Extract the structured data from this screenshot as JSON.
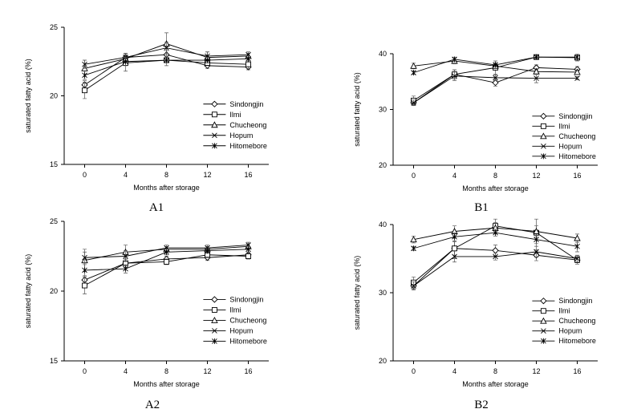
{
  "figure": {
    "panels": [
      {
        "id": "A1",
        "label": "A1"
      },
      {
        "id": "B1",
        "label": "B1"
      },
      {
        "id": "A2",
        "label": "A2"
      },
      {
        "id": "B2",
        "label": "B2"
      }
    ]
  },
  "chart_data": [
    {
      "type": "line",
      "panel": "A1",
      "xlabel": "Months after storage",
      "ylabel": "saturated fatty acid (%)",
      "x": [
        0,
        4,
        8,
        12,
        16
      ],
      "xlim": [
        -2,
        18
      ],
      "ylim": [
        15,
        25
      ],
      "yticks": [
        15,
        20,
        25
      ],
      "grid": false,
      "legend": "right",
      "series": [
        {
          "name": "Sindongjin",
          "marker": "diamond",
          "values": [
            20.8,
            22.8,
            23.0,
            22.2,
            22.1
          ],
          "err": [
            0.3,
            0.3,
            0.3,
            0.2,
            0.2
          ]
        },
        {
          "name": "Ilmi",
          "marker": "square",
          "values": [
            20.4,
            22.4,
            22.6,
            22.4,
            22.3
          ],
          "err": [
            0.6,
            0.6,
            0.4,
            0.2,
            0.3
          ]
        },
        {
          "name": "Chucheong",
          "marker": "triangle",
          "values": [
            22.0,
            22.7,
            23.8,
            22.8,
            22.9
          ],
          "err": [
            0.6,
            0.3,
            0.8,
            0.4,
            0.2
          ]
        },
        {
          "name": "Hopum",
          "marker": "x",
          "values": [
            22.3,
            22.8,
            23.5,
            22.9,
            23.0
          ],
          "err": [
            0.3,
            0.3,
            0.4,
            0.3,
            0.2
          ]
        },
        {
          "name": "Hitomebore",
          "marker": "star",
          "values": [
            21.5,
            22.5,
            22.6,
            22.6,
            22.7
          ],
          "err": [
            0.3,
            0.3,
            0.2,
            0.2,
            0.2
          ]
        }
      ]
    },
    {
      "type": "line",
      "panel": "B1",
      "xlabel": "Months after storage",
      "ylabel": "saturated fatty acid (%)",
      "x": [
        0,
        4,
        8,
        12,
        16
      ],
      "xlim": [
        -2,
        18
      ],
      "ylim": [
        20,
        40
      ],
      "yticks": [
        20,
        30,
        40
      ],
      "grid": false,
      "legend": "right",
      "series": [
        {
          "name": "Sindongjin",
          "marker": "diamond",
          "values": [
            31.2,
            36.3,
            34.8,
            37.5,
            37.2
          ],
          "err": [
            0.5,
            0.8,
            0.6,
            0.5,
            0.5
          ]
        },
        {
          "name": "Ilmi",
          "marker": "square",
          "values": [
            31.6,
            36.3,
            37.5,
            39.4,
            39.3
          ],
          "err": [
            0.8,
            0.8,
            1.2,
            0.3,
            0.6
          ]
        },
        {
          "name": "Chucheong",
          "marker": "triangle",
          "values": [
            37.8,
            38.7,
            37.8,
            36.8,
            36.7
          ],
          "err": [
            0.5,
            0.5,
            0.4,
            0.5,
            0.4
          ]
        },
        {
          "name": "Hopum",
          "marker": "x",
          "values": [
            31.2,
            36.0,
            35.7,
            35.6,
            35.6
          ],
          "err": [
            0.5,
            0.8,
            0.5,
            0.8,
            0.3
          ]
        },
        {
          "name": "Hitomebore",
          "marker": "star",
          "values": [
            36.6,
            39.0,
            38.0,
            39.4,
            39.4
          ],
          "err": [
            0.3,
            0.4,
            0.4,
            0.3,
            0.3
          ]
        }
      ]
    },
    {
      "type": "line",
      "panel": "A2",
      "xlabel": "Months after storage",
      "ylabel": "saturated fatty acid (%)",
      "x": [
        0,
        4,
        8,
        12,
        16
      ],
      "xlim": [
        -2,
        18
      ],
      "ylim": [
        15,
        25
      ],
      "yticks": [
        15,
        20,
        25
      ],
      "grid": false,
      "legend": "right",
      "series": [
        {
          "name": "Sindongjin",
          "marker": "diamond",
          "values": [
            20.8,
            22.0,
            22.3,
            22.4,
            22.6
          ],
          "err": [
            0.3,
            0.3,
            0.2,
            0.2,
            0.2
          ]
        },
        {
          "name": "Ilmi",
          "marker": "square",
          "values": [
            20.4,
            22.0,
            22.1,
            22.6,
            22.5
          ],
          "err": [
            0.6,
            0.3,
            0.2,
            0.2,
            0.2
          ]
        },
        {
          "name": "Chucheong",
          "marker": "triangle",
          "values": [
            22.2,
            22.8,
            23.0,
            23.0,
            23.2
          ],
          "err": [
            0.8,
            0.5,
            0.2,
            0.2,
            0.2
          ]
        },
        {
          "name": "Hopum",
          "marker": "x",
          "values": [
            22.4,
            22.5,
            23.1,
            23.1,
            23.3
          ],
          "err": [
            0.4,
            0.4,
            0.2,
            0.2,
            0.2
          ]
        },
        {
          "name": "Hitomebore",
          "marker": "star",
          "values": [
            21.5,
            21.6,
            22.8,
            22.9,
            23.0
          ],
          "err": [
            0.4,
            0.3,
            0.2,
            0.2,
            0.2
          ]
        }
      ]
    },
    {
      "type": "line",
      "panel": "B2",
      "xlabel": "Months after storage",
      "ylabel": "saturated fatty acid (%)",
      "x": [
        0,
        4,
        8,
        12,
        16
      ],
      "xlim": [
        -2,
        18
      ],
      "ylim": [
        20,
        40
      ],
      "yticks": [
        20,
        30,
        40
      ],
      "grid": false,
      "legend": "right",
      "series": [
        {
          "name": "Sindongjin",
          "marker": "diamond",
          "values": [
            31.0,
            36.5,
            36.2,
            35.5,
            34.8
          ],
          "err": [
            0.5,
            1.0,
            0.8,
            0.8,
            0.4
          ]
        },
        {
          "name": "Ilmi",
          "marker": "square",
          "values": [
            31.5,
            36.5,
            39.8,
            38.8,
            34.8
          ],
          "err": [
            0.8,
            1.5,
            1.0,
            2.0,
            0.6
          ]
        },
        {
          "name": "Chucheong",
          "marker": "triangle",
          "values": [
            37.8,
            39.0,
            39.5,
            39.0,
            38.0
          ],
          "err": [
            0.5,
            0.8,
            0.8,
            0.8,
            0.6
          ]
        },
        {
          "name": "Hopum",
          "marker": "x",
          "values": [
            31.0,
            35.3,
            35.3,
            36.0,
            35.0
          ],
          "err": [
            0.6,
            0.8,
            0.5,
            0.8,
            0.5
          ]
        },
        {
          "name": "Hitomebore",
          "marker": "star",
          "values": [
            36.5,
            38.2,
            38.8,
            37.8,
            36.8
          ],
          "err": [
            0.3,
            0.6,
            0.5,
            0.6,
            0.8
          ]
        }
      ]
    }
  ]
}
